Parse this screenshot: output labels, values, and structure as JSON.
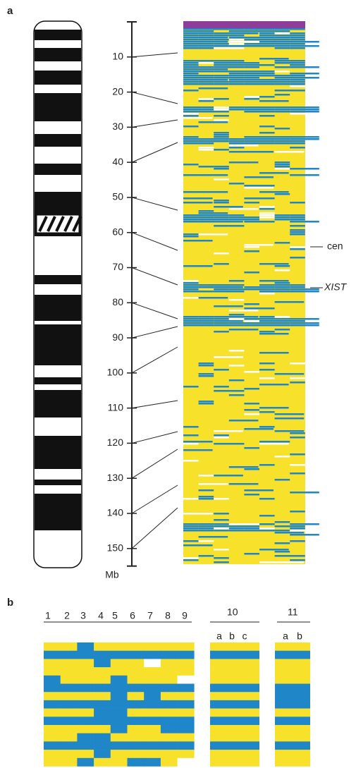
{
  "panel_a": {
    "label": "a",
    "axis": {
      "range": [
        0,
        155
      ],
      "ticks": [
        10,
        20,
        30,
        40,
        50,
        60,
        70,
        80,
        90,
        100,
        110,
        120,
        130,
        140,
        150
      ],
      "unit": "Mb"
    },
    "annotations": [
      "cen",
      "XIST"
    ]
  },
  "panel_b": {
    "label": "b",
    "columns": [
      "1",
      "2",
      "3",
      "4",
      "5",
      "6",
      "7",
      "8",
      "9"
    ],
    "group_10": {
      "label": "10",
      "subs": [
        "a",
        "b",
        "c"
      ]
    },
    "group_11": {
      "label": "11",
      "subs": [
        "a",
        "b"
      ]
    }
  }
}
